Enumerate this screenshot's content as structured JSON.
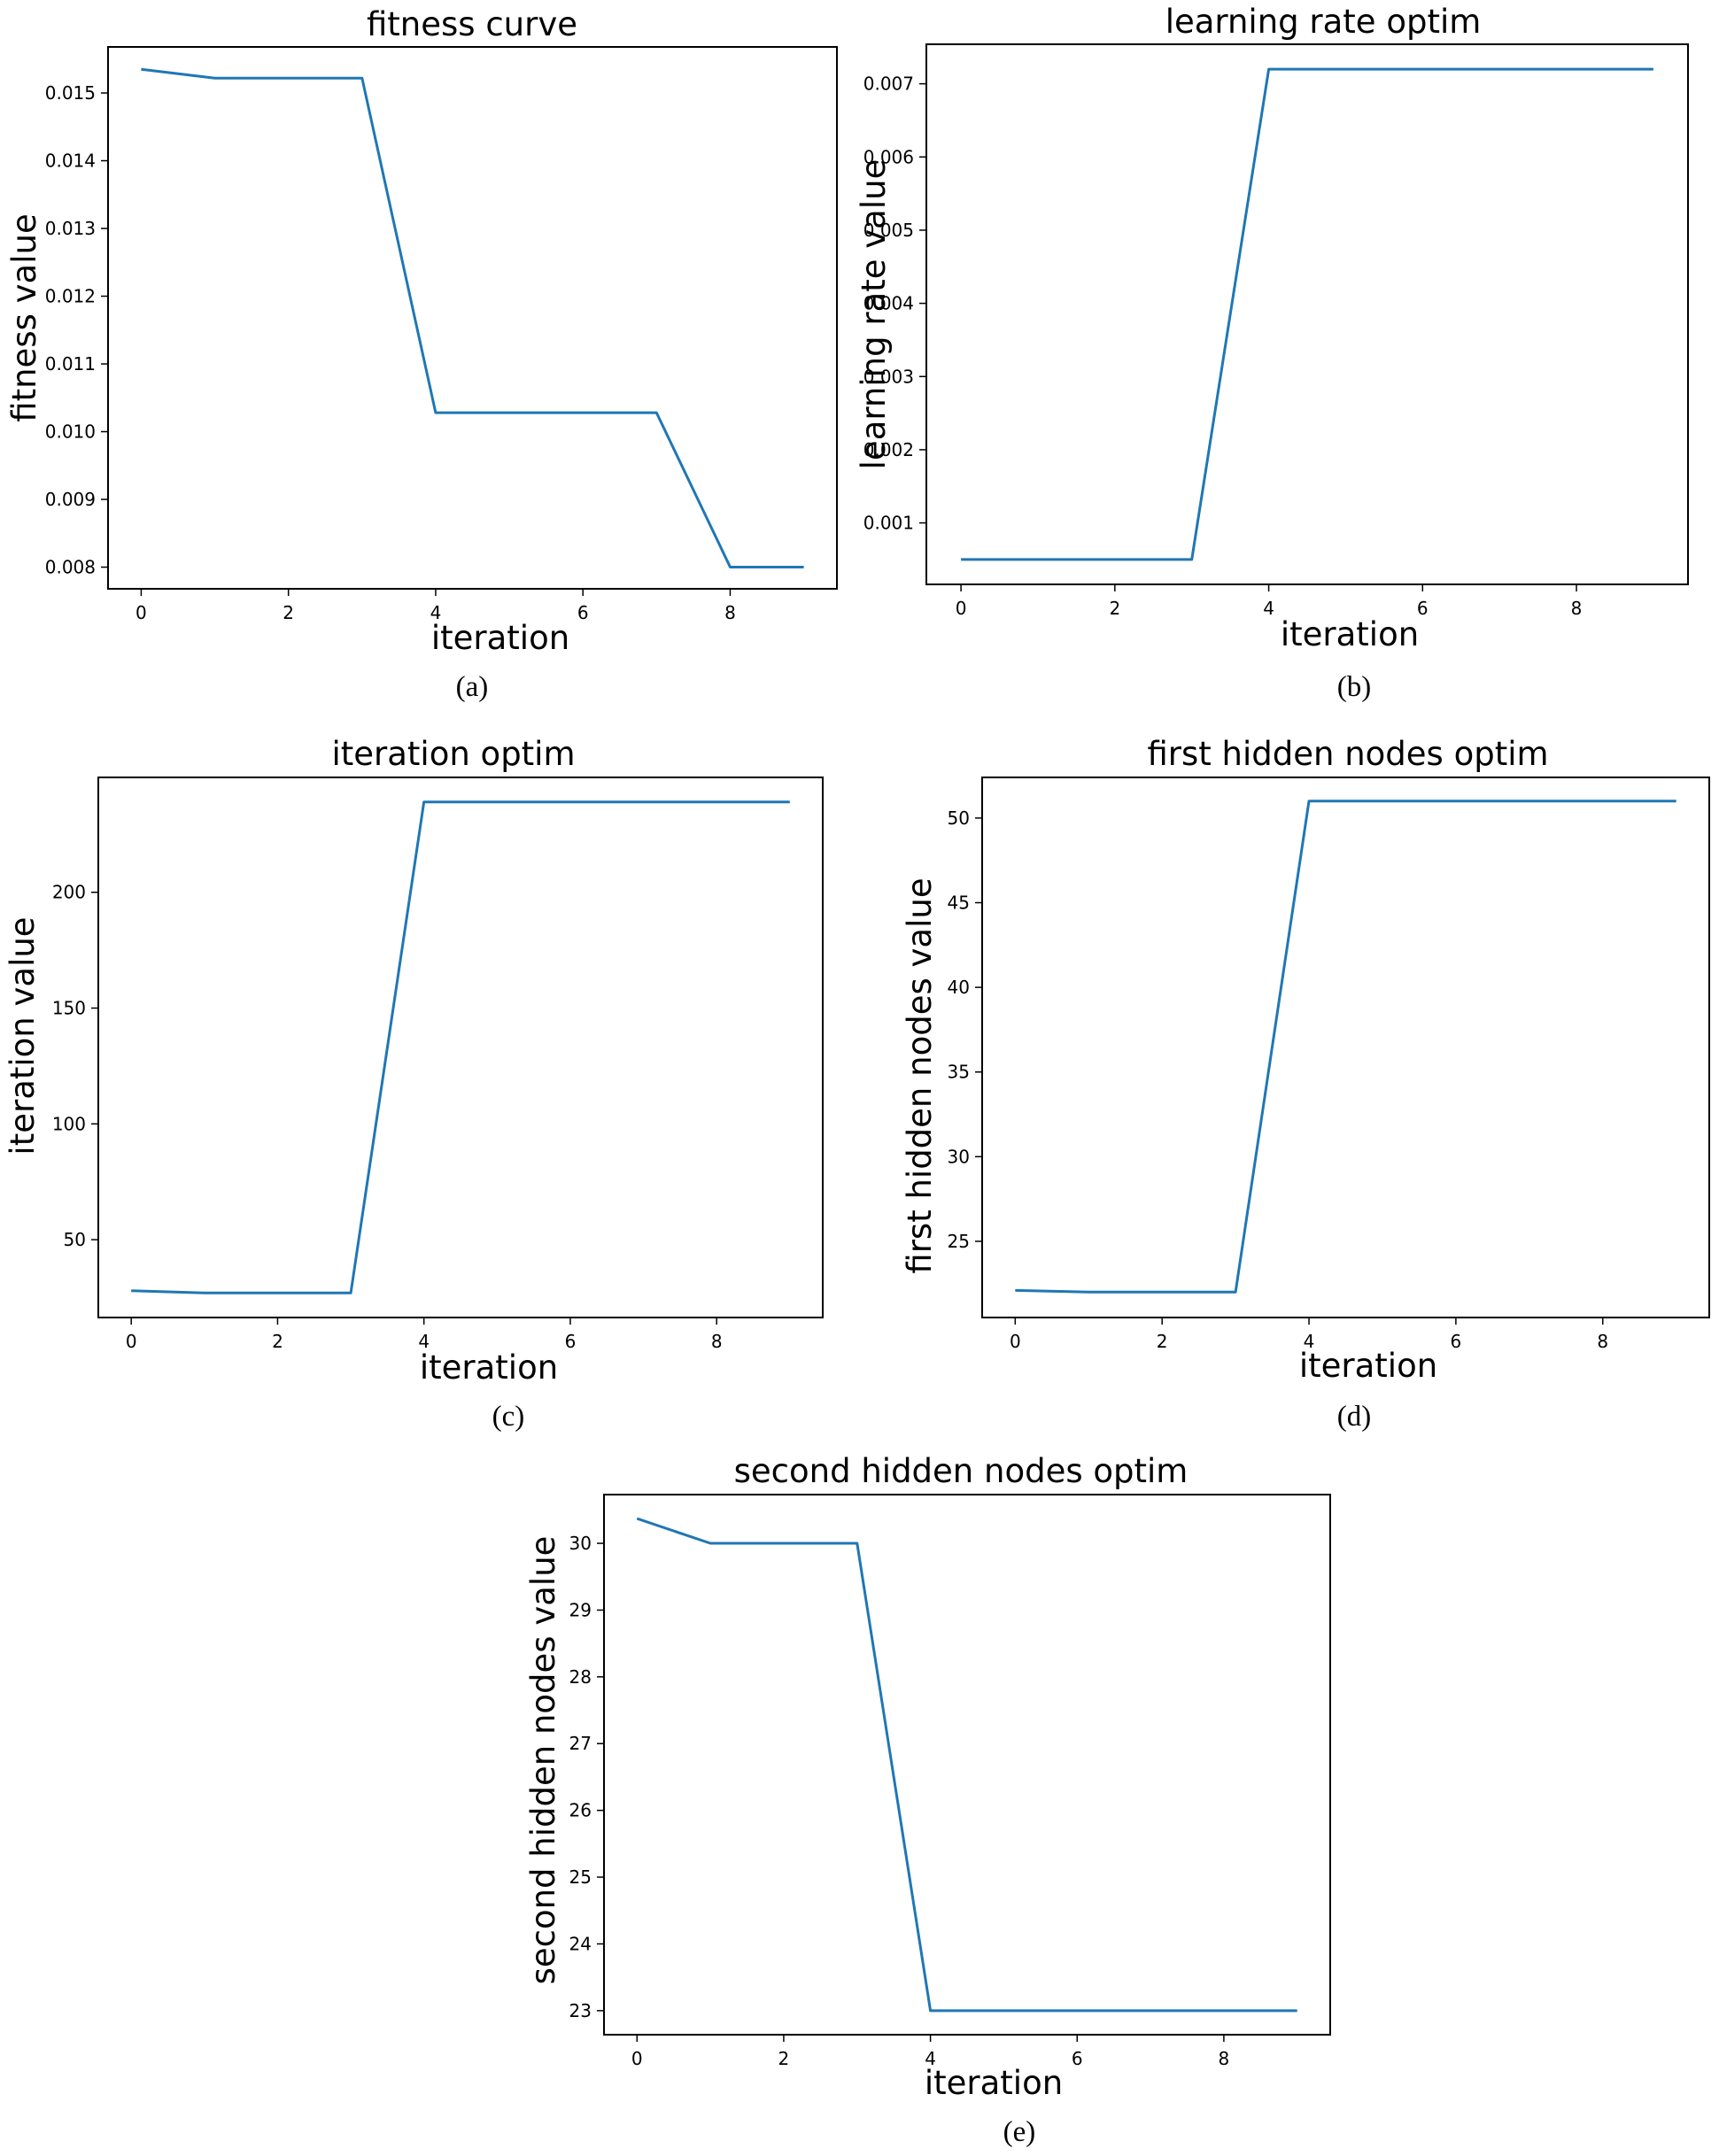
{
  "line_color": "#1f77b4",
  "chart_data": [
    {
      "type": "line",
      "panel": "(a)",
      "title": "fitness curve",
      "xlabel": "iteration",
      "ylabel": "fitness value",
      "x": [
        0,
        1,
        2,
        3,
        4,
        5,
        6,
        7,
        8,
        9
      ],
      "y": [
        0.01535,
        0.01522,
        0.01522,
        0.01522,
        0.01028,
        0.01028,
        0.01028,
        0.01028,
        0.008,
        0.008
      ],
      "xlim": [
        -0.45,
        9.45
      ],
      "ylim": [
        0.00768,
        0.01568
      ],
      "xticks": [
        0,
        2,
        4,
        6,
        8
      ],
      "yticks": [
        0.008,
        0.009,
        0.01,
        0.011,
        0.012,
        0.013,
        0.014,
        0.015
      ],
      "ytick_labels": [
        "0.008",
        "0.009",
        "0.010",
        "0.011",
        "0.012",
        "0.013",
        "0.014",
        "0.015"
      ],
      "grid": false
    },
    {
      "type": "line",
      "panel": "(b)",
      "title": "learning rate optim",
      "xlabel": "iteration",
      "ylabel": "learning rate value",
      "x": [
        0,
        1,
        2,
        3,
        4,
        5,
        6,
        7,
        8,
        9
      ],
      "y": [
        0.0005,
        0.0005,
        0.0005,
        0.0005,
        0.0072,
        0.0072,
        0.0072,
        0.0072,
        0.0072,
        0.0072
      ],
      "xlim": [
        -0.45,
        9.45
      ],
      "ylim": [
        0.00016,
        0.00754
      ],
      "xticks": [
        0,
        2,
        4,
        6,
        8
      ],
      "yticks": [
        0.001,
        0.002,
        0.003,
        0.004,
        0.005,
        0.006,
        0.007
      ],
      "ytick_labels": [
        "0.001",
        "0.002",
        "0.003",
        "0.004",
        "0.005",
        "0.006",
        "0.007"
      ],
      "grid": false
    },
    {
      "type": "line",
      "panel": "(c)",
      "title": "iteration optim",
      "xlabel": "iteration",
      "ylabel": "iteration value",
      "x": [
        0,
        1,
        2,
        3,
        4,
        5,
        6,
        7,
        8,
        9
      ],
      "y": [
        28,
        27,
        27,
        27,
        239,
        239,
        239,
        239,
        239,
        239
      ],
      "xlim": [
        -0.45,
        9.45
      ],
      "ylim": [
        16.4,
        249.6
      ],
      "xticks": [
        0,
        2,
        4,
        6,
        8
      ],
      "yticks": [
        50,
        100,
        150,
        200
      ],
      "ytick_labels": [
        "50",
        "100",
        "150",
        "200"
      ],
      "grid": false
    },
    {
      "type": "line",
      "panel": "(d)",
      "title": "first hidden nodes optim",
      "xlabel": "iteration",
      "ylabel": "first hidden nodes value",
      "x": [
        0,
        1,
        2,
        3,
        4,
        5,
        6,
        7,
        8,
        9
      ],
      "y": [
        22.1,
        22.0,
        22.0,
        22.0,
        51,
        51,
        51,
        51,
        51,
        51
      ],
      "xlim": [
        -0.45,
        9.45
      ],
      "ylim": [
        20.5,
        52.4
      ],
      "xticks": [
        0,
        2,
        4,
        6,
        8
      ],
      "yticks": [
        25,
        30,
        35,
        40,
        45,
        50
      ],
      "ytick_labels": [
        "25",
        "30",
        "35",
        "40",
        "45",
        "50"
      ],
      "grid": false
    },
    {
      "type": "line",
      "panel": "(e)",
      "title": "second hidden nodes optim",
      "xlabel": "iteration",
      "ylabel": "second hidden nodes value",
      "x": [
        0,
        1,
        2,
        3,
        4,
        5,
        6,
        7,
        8,
        9
      ],
      "y": [
        30.37,
        30.0,
        30.0,
        30.0,
        23,
        23,
        23,
        23,
        23,
        23
      ],
      "xlim": [
        -0.45,
        9.45
      ],
      "ylim": [
        22.64,
        30.73
      ],
      "xticks": [
        0,
        2,
        4,
        6,
        8
      ],
      "yticks": [
        23,
        24,
        25,
        26,
        27,
        28,
        29,
        30
      ],
      "ytick_labels": [
        "23",
        "24",
        "25",
        "26",
        "27",
        "28",
        "29",
        "30"
      ],
      "grid": false
    }
  ]
}
